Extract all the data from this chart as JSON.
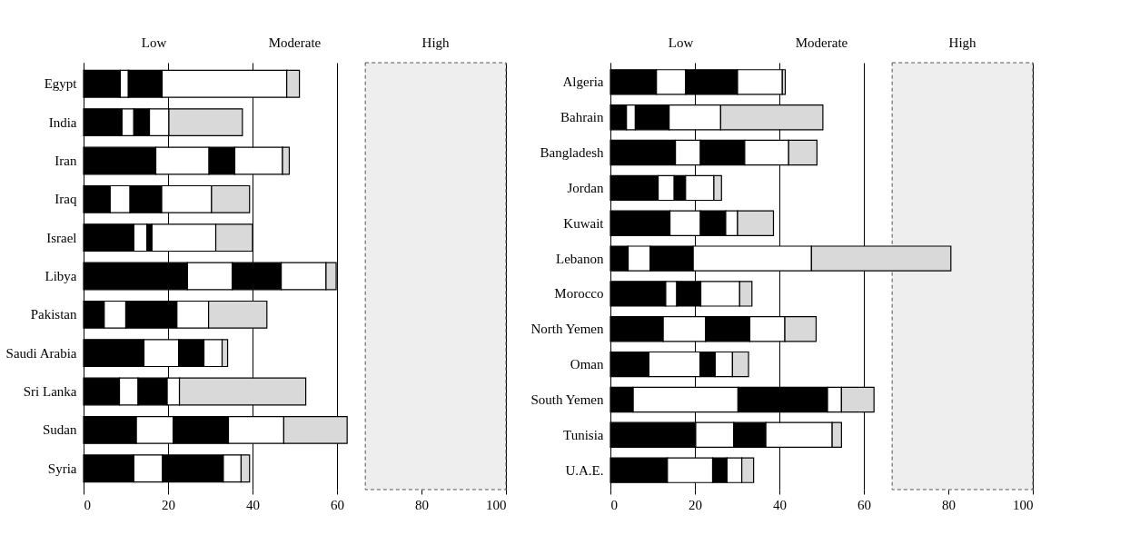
{
  "chart_data": [
    {
      "type": "bar",
      "orientation": "horizontal",
      "stacked": true,
      "categories": [
        "Egypt",
        "India",
        "Iran",
        "Iraq",
        "Israel",
        "Libya",
        "Pakistan",
        "Saudi Arabia",
        "Sri Lanka",
        "Sudan",
        "Syria"
      ],
      "series": [
        {
          "color": "#000000",
          "values": [
            8.7,
            9.1,
            17.1,
            6.3,
            11.9,
            24.6,
            4.9,
            14.3,
            8.5,
            12.5,
            11.9
          ]
        },
        {
          "color": "#ffffff",
          "values": [
            1.9,
            2.8,
            12.6,
            4.7,
            3.1,
            10.6,
            5.1,
            8.2,
            4.4,
            8.7,
            6.8
          ]
        },
        {
          "color": "#000000",
          "values": [
            8.0,
            3.7,
            6.1,
            7.5,
            1.2,
            11.6,
            12.1,
            6.0,
            6.9,
            13.1,
            14.4
          ]
        },
        {
          "color": "#ffffff",
          "values": [
            29.5,
            4.6,
            11.3,
            11.8,
            15.1,
            10.6,
            7.5,
            4.3,
            2.9,
            13.1,
            4.2
          ]
        },
        {
          "color": "#d9d9d9",
          "values": [
            3.0,
            17.4,
            1.6,
            9.0,
            8.7,
            2.4,
            13.8,
            1.3,
            29.9,
            15.0,
            2.0
          ]
        }
      ],
      "xlim": [
        0,
        100
      ],
      "xticks": [
        0,
        20,
        40,
        60,
        80,
        100
      ],
      "grid": "x",
      "annotations": [
        "Low",
        "Moderate"
      ],
      "bands": [
        {
          "axis": "x",
          "from": 66.7,
          "to": 100,
          "label": "High",
          "color": "#eeeeee"
        }
      ]
    },
    {
      "type": "bar",
      "orientation": "horizontal",
      "stacked": true,
      "categories": [
        "Algeria",
        "Bahrain",
        "Bangladesh",
        "Jordan",
        "Kuwait",
        "Lebanon",
        "Morocco",
        "North Yemen",
        "Oman",
        "South Yemen",
        "Tunisia",
        "U.A.E."
      ],
      "series": [
        {
          "color": "#000000",
          "values": [
            10.9,
            3.8,
            15.4,
            11.3,
            14.1,
            4.2,
            13.1,
            12.5,
            9.1,
            5.4,
            20.2,
            13.5
          ]
        },
        {
          "color": "#ffffff",
          "values": [
            6.9,
            2.1,
            5.9,
            3.8,
            7.2,
            5.2,
            2.6,
            10.0,
            12.1,
            24.8,
            9.0,
            10.7
          ]
        },
        {
          "color": "#000000",
          "values": [
            12.3,
            8.0,
            10.5,
            2.7,
            6.0,
            10.2,
            5.7,
            10.5,
            3.6,
            21.2,
            7.6,
            3.4
          ]
        },
        {
          "color": "#ffffff",
          "values": [
            10.6,
            12.2,
            10.4,
            6.7,
            2.8,
            28.0,
            9.2,
            8.3,
            4.1,
            3.3,
            15.7,
            3.5
          ]
        },
        {
          "color": "#d9d9d9",
          "values": [
            0.7,
            24.2,
            6.7,
            1.8,
            8.5,
            33.0,
            2.9,
            7.4,
            3.8,
            7.7,
            2.2,
            2.8
          ]
        }
      ],
      "xlim": [
        0,
        100
      ],
      "xticks": [
        0,
        20,
        40,
        60,
        80,
        100
      ],
      "grid": "x",
      "annotations": [
        "Low",
        "Moderate"
      ],
      "bands": [
        {
          "axis": "x",
          "from": 66.7,
          "to": 100,
          "label": "High",
          "color": "#eeeeee"
        }
      ]
    }
  ]
}
